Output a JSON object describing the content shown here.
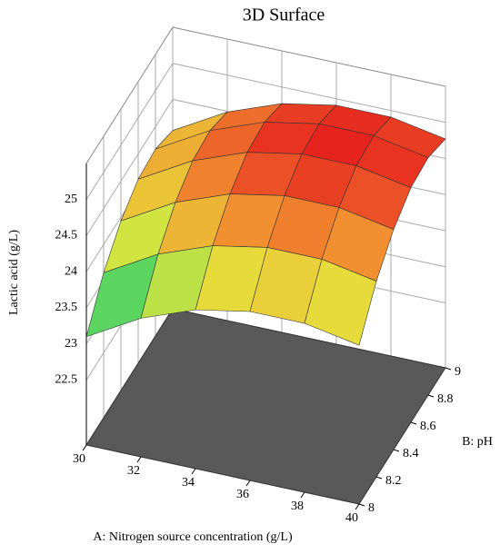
{
  "chart_data": {
    "type": "surface",
    "title": "3D Surface",
    "xlabel": "A: Nitrogen source concentration (g/L)",
    "ylabel": "B: pH",
    "zlabel": "Lactic acid (g/L)",
    "x": [
      30,
      32,
      34,
      36,
      38,
      40
    ],
    "y": [
      8,
      8.2,
      8.4,
      8.6,
      8.8,
      9
    ],
    "z": [
      [
        23.1,
        23.61,
        23.95,
        24.15,
        24.19,
        24.07
      ],
      [
        23.52,
        24.03,
        24.37,
        24.57,
        24.61,
        24.49
      ],
      [
        23.8,
        24.31,
        24.65,
        24.85,
        24.89,
        24.77
      ],
      [
        23.94,
        24.45,
        24.79,
        24.99,
        25.03,
        24.91
      ],
      [
        23.94,
        24.45,
        24.79,
        24.99,
        25.03,
        24.91
      ],
      [
        23.8,
        24.31,
        24.65,
        24.85,
        24.89,
        24.77
      ]
    ],
    "xlim": [
      30,
      40
    ],
    "ylim": [
      8,
      9
    ],
    "zlim": [
      21.6,
      25.5
    ],
    "xticks": [
      30,
      32,
      34,
      36,
      38,
      40
    ],
    "yticks": [
      8,
      8.2,
      8.4,
      8.6,
      8.8,
      9
    ],
    "zticks": [
      22.5,
      23,
      23.5,
      24,
      24.5,
      25
    ],
    "colormap": [
      "#3cc8c8",
      "#5cd65c",
      "#e6e63c",
      "#f29030",
      "#e61e1e"
    ],
    "floor_color": "#595959",
    "grid": true
  }
}
